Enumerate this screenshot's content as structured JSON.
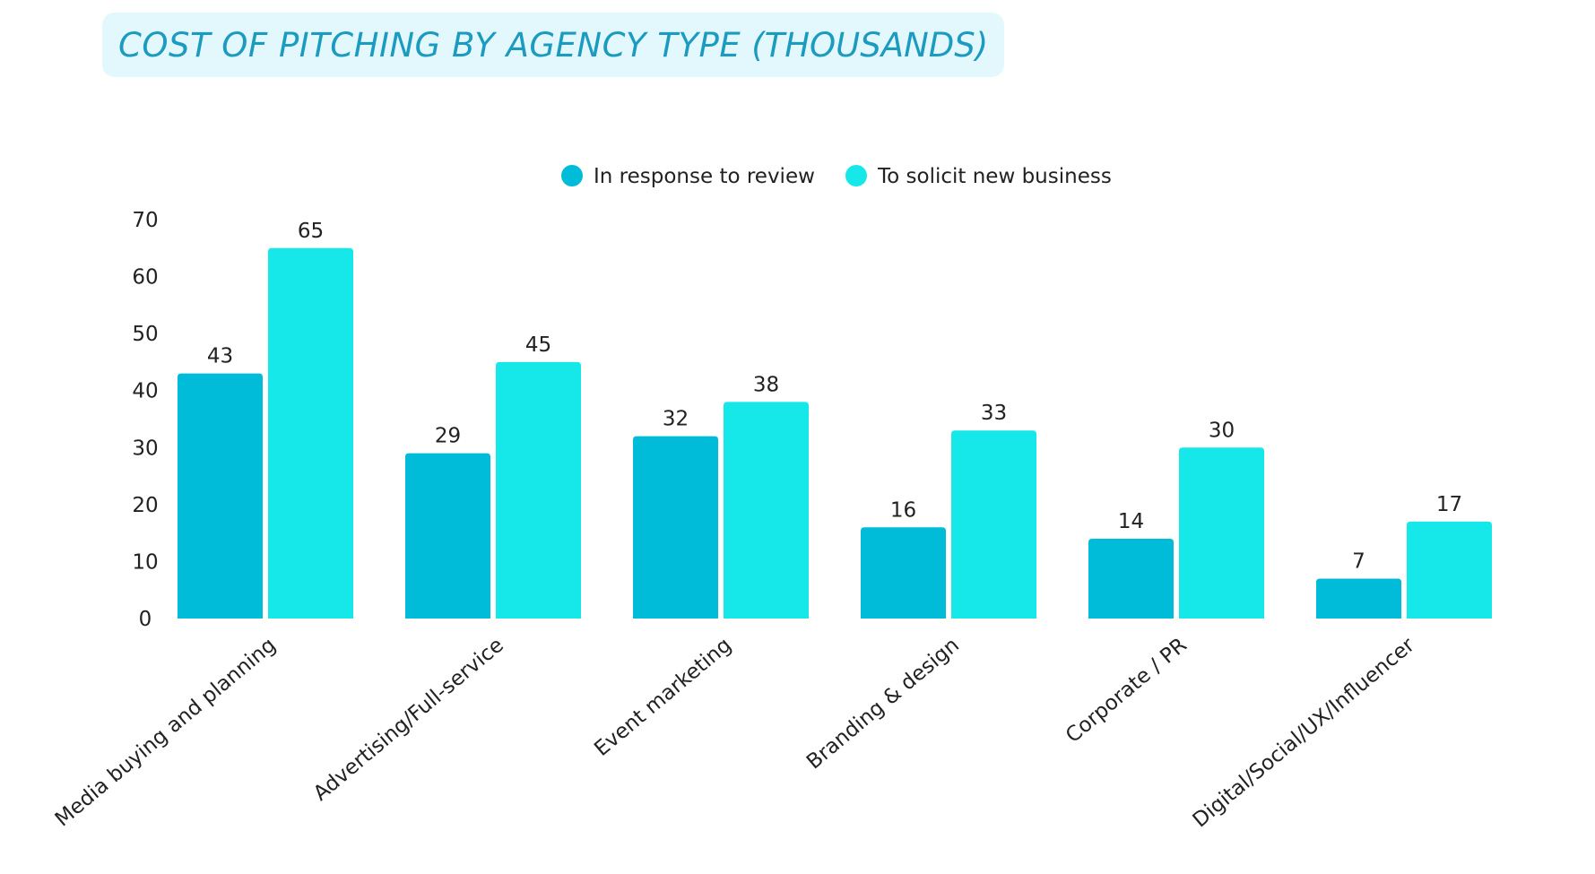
{
  "chart_data": {
    "type": "bar",
    "title": "COST OF PITCHING BY AGENCY TYPE",
    "subtitle": "(THOUSANDS)",
    "categories": [
      "Media buying and planning",
      "Advertising/Full-service",
      "Event marketing",
      "Branding & design",
      "Corporate / PR",
      "Digital/Social/UX/Influencer"
    ],
    "series": [
      {
        "name": "In response to review",
        "values": [
          43,
          29,
          32,
          16,
          14,
          7
        ],
        "color": "#00bcd8"
      },
      {
        "name": "To solicit new business",
        "values": [
          65,
          45,
          38,
          33,
          30,
          17
        ],
        "color": "#16e8ea"
      }
    ],
    "ylim": [
      0,
      70
    ],
    "yticks": [
      0,
      10,
      20,
      30,
      40,
      50,
      60,
      70
    ],
    "xlabel": "",
    "ylabel": "",
    "grid": false,
    "legend_position": "top-center"
  }
}
